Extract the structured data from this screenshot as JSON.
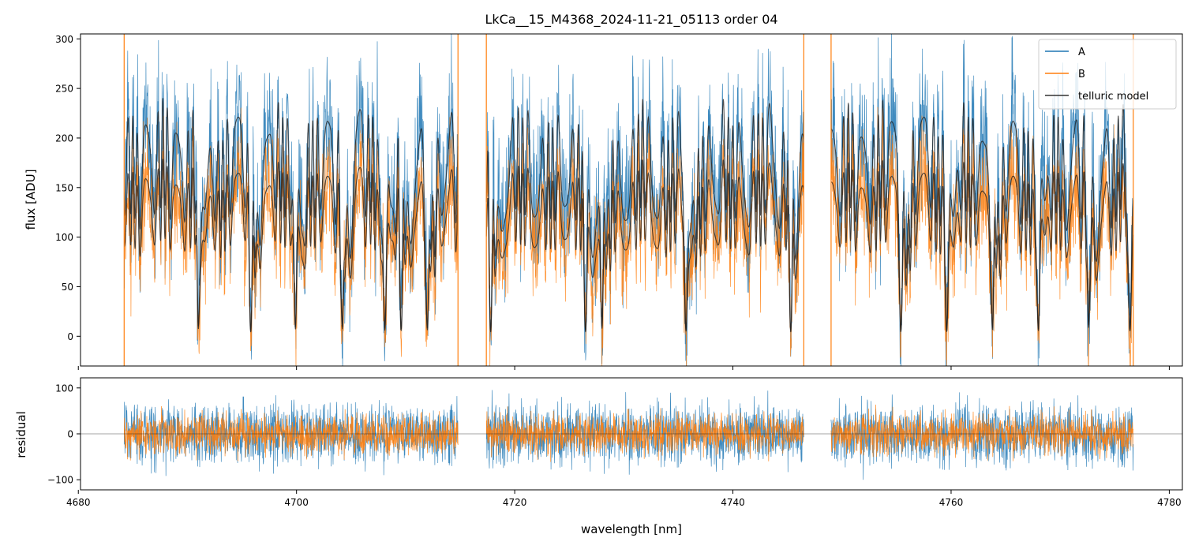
{
  "chart_data": [
    {
      "type": "line",
      "title": "LkCa__15_M4368_2024-11-21_05113  order 04",
      "xlabel": "",
      "ylabel": "flux [ADU]",
      "xlim": [
        4680.2,
        4781.2
      ],
      "ylim": [
        -30,
        305
      ],
      "yticks": [
        "0",
        "50",
        "100",
        "150",
        "200",
        "250",
        "300"
      ],
      "xticks": [
        4680,
        4700,
        4720,
        4740,
        4760,
        4780
      ],
      "legend": {
        "placement": "top-right",
        "entries": [
          "A",
          "B",
          "telluric model"
        ]
      },
      "grid": false,
      "colors": {
        "A": "#1f77b4",
        "B": "#ff7f0e",
        "telluric model": "#333333"
      },
      "segments": [
        {
          "x_range": [
            4684.2,
            4714.8
          ]
        },
        {
          "x_range": [
            4717.4,
            4746.5
          ]
        },
        {
          "x_range": [
            4749.0,
            4776.7
          ]
        }
      ],
      "series": [
        {
          "name": "A",
          "typical_continuum": 235,
          "noise_level": 40
        },
        {
          "name": "B",
          "typical_continuum": 175,
          "noise_level": 30
        },
        {
          "name": "telluric model",
          "continuum_levels": [
            235,
            175
          ]
        }
      ],
      "absorption_lines_nm": [
        4691.0,
        4695.8,
        4699.9,
        4704.2,
        4708.1,
        4709.6,
        4712.0,
        4717.8,
        4726.5,
        4728.0,
        4735.7,
        4745.3,
        4755.4,
        4759.6,
        4763.8,
        4768.0,
        4772.6,
        4776.4
      ]
    },
    {
      "type": "line",
      "title": "",
      "xlabel": "wavelength [nm]",
      "ylabel": "residual",
      "xlim": [
        4680.2,
        4781.2
      ],
      "ylim": [
        -122,
        122
      ],
      "yticks": [
        "−100",
        "0",
        "100"
      ],
      "xticks": [
        "4680",
        "4700",
        "4720",
        "4740",
        "4760",
        "4780"
      ],
      "zero_line": true,
      "series": [
        {
          "name": "A",
          "noise_level": 45
        },
        {
          "name": "B",
          "noise_level": 30
        }
      ]
    }
  ]
}
